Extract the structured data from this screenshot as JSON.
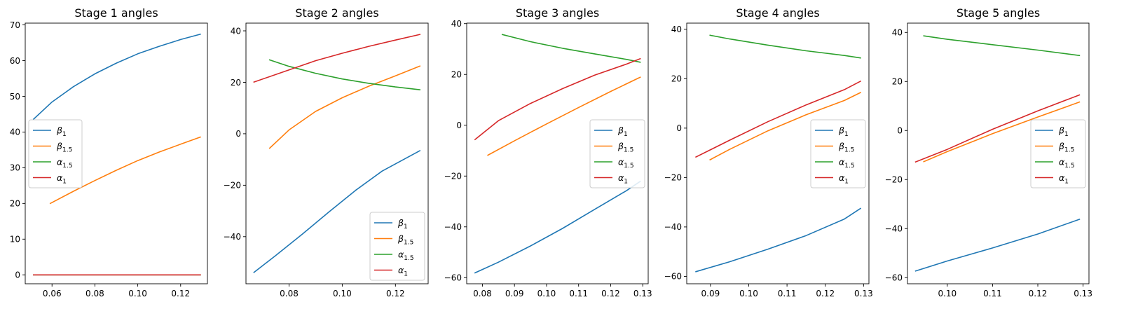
{
  "chart_data": [
    {
      "type": "line",
      "title": "Stage 1 angles",
      "xlim": [
        0.0475,
        0.1325
      ],
      "ylim": [
        -2.5,
        70.5
      ],
      "xticks": [
        "0.06",
        "0.08",
        "0.10",
        "0.12"
      ],
      "yticks": [
        "0",
        "10",
        "20",
        "30",
        "40",
        "50",
        "60",
        "70"
      ],
      "legend": "center-left",
      "series": [
        {
          "name": "β₁",
          "color": "#1f77b4",
          "x": [
            0.0514,
            0.06,
            0.07,
            0.08,
            0.09,
            0.1,
            0.11,
            0.12,
            0.1292
          ],
          "y": [
            43.6,
            48.4,
            52.7,
            56.3,
            59.3,
            61.9,
            64.0,
            65.9,
            67.4
          ]
        },
        {
          "name": "β₁.₅",
          "color": "#ff7f0e",
          "x": [
            0.0592,
            0.07,
            0.08,
            0.09,
            0.1,
            0.11,
            0.12,
            0.1292
          ],
          "y": [
            20.0,
            23.4,
            26.4,
            29.3,
            32.0,
            34.4,
            36.6,
            38.6
          ]
        },
        {
          "name": "α₁.₅",
          "color": "#2ca02c",
          "x": [
            0.0514,
            0.1292
          ],
          "y": [
            0.0,
            0.0
          ]
        },
        {
          "name": "α₁",
          "color": "#d62728",
          "x": [
            0.0514,
            0.1292
          ],
          "y": [
            0.0,
            0.0
          ]
        }
      ]
    },
    {
      "type": "line",
      "title": "Stage 2 angles",
      "xlim": [
        0.0638,
        0.1323
      ],
      "ylim": [
        -58.3,
        43.0
      ],
      "xticks": [
        "0.08",
        "0.10",
        "0.12"
      ],
      "yticks": [
        "−40",
        "−20",
        "0",
        "20",
        "40"
      ],
      "legend": "lower-right",
      "series": [
        {
          "name": "β₁",
          "color": "#1f77b4",
          "x": [
            0.0668,
            0.075,
            0.085,
            0.095,
            0.105,
            0.115,
            0.1292
          ],
          "y": [
            -53.9,
            -47.3,
            -39.0,
            -30.4,
            -22.0,
            -14.5,
            -6.6
          ]
        },
        {
          "name": "β₁.₅",
          "color": "#ff7f0e",
          "x": [
            0.0727,
            0.08,
            0.09,
            0.1,
            0.11,
            0.12,
            0.1292
          ],
          "y": [
            -5.6,
            1.5,
            8.7,
            14.0,
            18.5,
            22.5,
            26.3
          ]
        },
        {
          "name": "α₁.₅",
          "color": "#2ca02c",
          "x": [
            0.0727,
            0.08,
            0.09,
            0.1,
            0.11,
            0.12,
            0.1292
          ],
          "y": [
            28.7,
            26.2,
            23.5,
            21.3,
            19.6,
            18.2,
            17.1
          ]
        },
        {
          "name": "α₁",
          "color": "#d62728",
          "x": [
            0.0668,
            0.08,
            0.09,
            0.1,
            0.11,
            0.12,
            0.1292
          ],
          "y": [
            20.1,
            24.8,
            28.4,
            31.3,
            34.0,
            36.4,
            38.6
          ]
        }
      ]
    },
    {
      "type": "line",
      "title": "Stage 3 angles",
      "xlim": [
        0.0751,
        0.1317
      ],
      "ylim": [
        -62.4,
        40.2
      ],
      "xticks": [
        "0.08",
        "0.09",
        "0.10",
        "0.11",
        "0.12",
        "0.13"
      ],
      "yticks": [
        "−60",
        "−40",
        "−20",
        "0",
        "20",
        "40"
      ],
      "legend": "center-right",
      "series": [
        {
          "name": "β₁",
          "color": "#1f77b4",
          "x": [
            0.0777,
            0.085,
            0.095,
            0.105,
            0.115,
            0.125,
            0.1292
          ],
          "y": [
            -58.1,
            -53.9,
            -47.5,
            -40.6,
            -33.1,
            -25.7,
            -22.1
          ]
        },
        {
          "name": "β₁.₅",
          "color": "#ff7f0e",
          "x": [
            0.0817,
            0.09,
            0.1,
            0.11,
            0.12,
            0.1292
          ],
          "y": [
            -11.8,
            -6.1,
            0.5,
            7.0,
            13.3,
            18.9
          ]
        },
        {
          "name": "α₁.₅",
          "color": "#2ca02c",
          "x": [
            0.0862,
            0.095,
            0.105,
            0.115,
            0.125,
            0.1292
          ],
          "y": [
            35.7,
            32.9,
            30.3,
            28.1,
            25.9,
            24.8
          ]
        },
        {
          "name": "α₁",
          "color": "#d62728",
          "x": [
            0.0777,
            0.085,
            0.095,
            0.105,
            0.115,
            0.125,
            0.1292
          ],
          "y": [
            -5.6,
            1.8,
            8.6,
            14.4,
            19.7,
            24.1,
            26.2
          ]
        }
      ]
    },
    {
      "type": "line",
      "title": "Stage 4 angles",
      "xlim": [
        0.0838,
        0.1314
      ],
      "ylim": [
        -63.0,
        42.5
      ],
      "xticks": [
        "0.09",
        "0.10",
        "0.11",
        "0.12",
        "0.13"
      ],
      "yticks": [
        "−60",
        "−40",
        "−20",
        "0",
        "20",
        "40"
      ],
      "legend": "center-right",
      "series": [
        {
          "name": "β₁",
          "color": "#1f77b4",
          "x": [
            0.0862,
            0.095,
            0.105,
            0.115,
            0.125,
            0.1292
          ],
          "y": [
            -58.1,
            -54.1,
            -49.0,
            -43.5,
            -36.8,
            -32.5
          ]
        },
        {
          "name": "β₁.₅",
          "color": "#ff7f0e",
          "x": [
            0.0899,
            0.095,
            0.105,
            0.115,
            0.125,
            0.1292
          ],
          "y": [
            -12.8,
            -8.6,
            -1.1,
            5.4,
            11.2,
            14.4
          ]
        },
        {
          "name": "α₁.₅",
          "color": "#2ca02c",
          "x": [
            0.0899,
            0.095,
            0.105,
            0.115,
            0.125,
            0.1292
          ],
          "y": [
            37.6,
            36.1,
            33.6,
            31.3,
            29.4,
            28.4
          ]
        },
        {
          "name": "α₁",
          "color": "#d62728",
          "x": [
            0.0862,
            0.095,
            0.105,
            0.115,
            0.125,
            0.1292
          ],
          "y": [
            -11.7,
            -4.9,
            2.6,
            9.4,
            15.6,
            19.0
          ]
        }
      ]
    },
    {
      "type": "line",
      "title": "Stage 5 angles",
      "xlim": [
        0.0912,
        0.1313
      ],
      "ylim": [
        -62.5,
        43.8
      ],
      "xticks": [
        "0.10",
        "0.11",
        "0.12",
        "0.13"
      ],
      "yticks": [
        "−60",
        "−40",
        "−20",
        "0",
        "20",
        "40"
      ],
      "legend": "center-right",
      "series": [
        {
          "name": "β₁",
          "color": "#1f77b4",
          "x": [
            0.093,
            0.1,
            0.11,
            0.12,
            0.1292
          ],
          "y": [
            -57.3,
            -53.2,
            -47.9,
            -42.2,
            -36.2
          ]
        },
        {
          "name": "β₁.₅",
          "color": "#ff7f0e",
          "x": [
            0.0948,
            0.1,
            0.11,
            0.12,
            0.1292
          ],
          "y": [
            -12.7,
            -8.6,
            -1.3,
            5.5,
            11.6
          ]
        },
        {
          "name": "α₁.₅",
          "color": "#2ca02c",
          "x": [
            0.0948,
            0.1,
            0.11,
            0.12,
            0.1292
          ],
          "y": [
            38.6,
            37.2,
            35.0,
            32.8,
            30.6
          ]
        },
        {
          "name": "α₁",
          "color": "#d62728",
          "x": [
            0.093,
            0.1,
            0.11,
            0.12,
            0.1292
          ],
          "y": [
            -12.8,
            -7.7,
            0.5,
            8.0,
            14.5
          ]
        }
      ]
    }
  ]
}
